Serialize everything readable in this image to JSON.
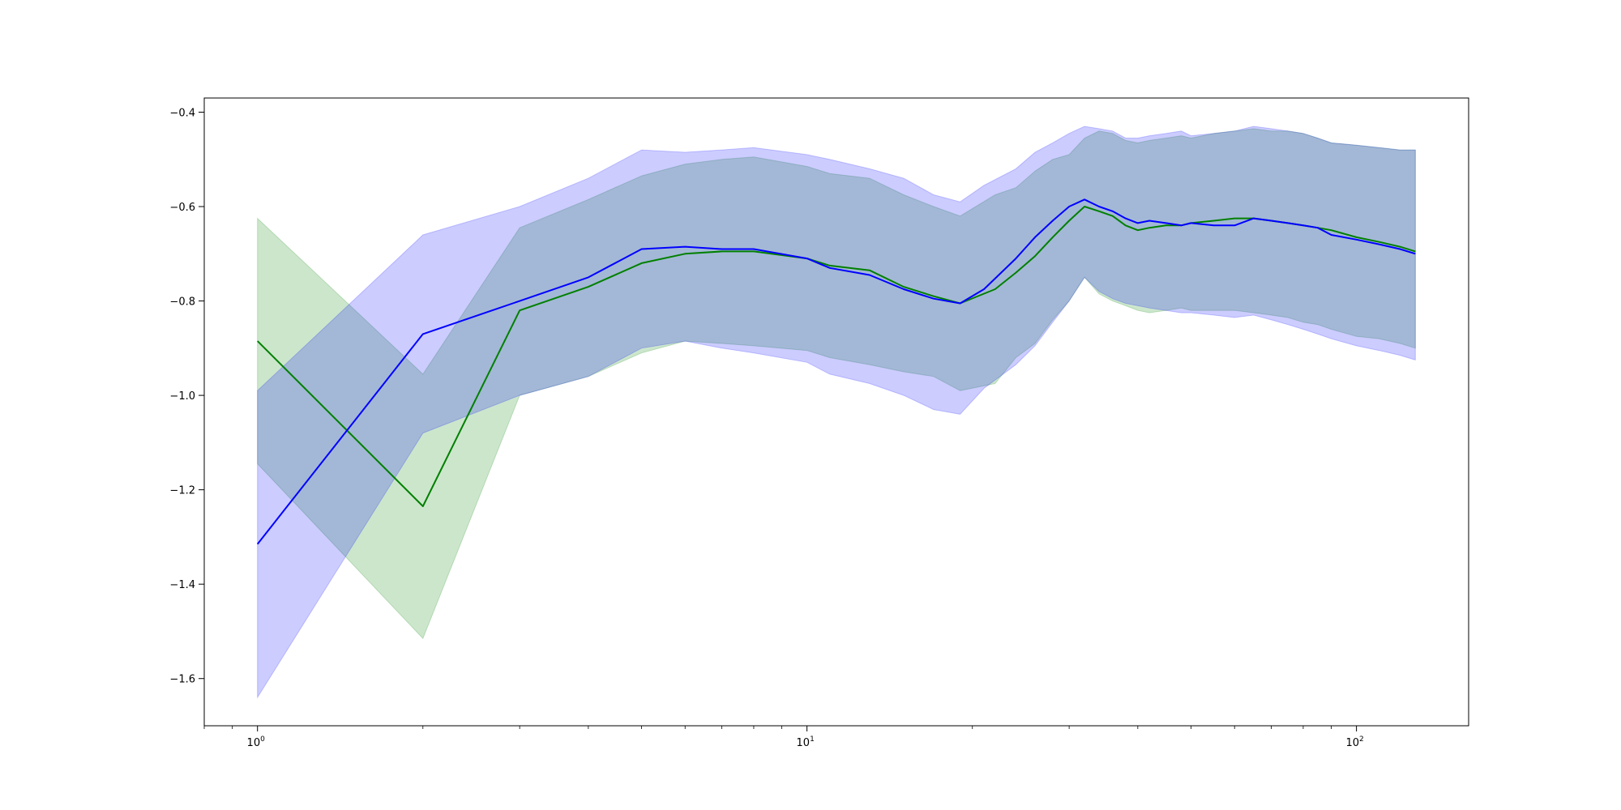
{
  "chart_data": {
    "type": "line",
    "title": "",
    "xlabel": "",
    "ylabel": "",
    "x_scale": "log",
    "xlim": [
      0.8,
      160
    ],
    "ylim": [
      -1.7,
      -0.37
    ],
    "x_ticks": [
      {
        "value": 1,
        "base": "10",
        "exp": "0"
      },
      {
        "value": 10,
        "base": "10",
        "exp": "1"
      },
      {
        "value": 100,
        "base": "10",
        "exp": "2"
      }
    ],
    "y_ticks": [
      {
        "value": -0.4,
        "label": "−0.4"
      },
      {
        "value": -0.6,
        "label": "−0.6"
      },
      {
        "value": -0.8,
        "label": "−0.8"
      },
      {
        "value": -1.0,
        "label": "−1.0"
      },
      {
        "value": -1.2,
        "label": "−1.2"
      },
      {
        "value": -1.4,
        "label": "−1.4"
      },
      {
        "value": -1.6,
        "label": "−1.6"
      }
    ],
    "grid": false,
    "legend": "none",
    "series": [
      {
        "color": "#008000",
        "band_color": "#008000",
        "band_opacity": 0.2,
        "x": [
          1,
          2,
          3,
          4,
          5,
          6,
          7,
          8,
          10,
          11,
          13,
          15,
          17,
          19,
          22,
          24,
          26,
          28,
          30,
          32,
          34,
          36,
          38,
          40,
          42,
          45,
          48,
          50,
          55,
          60,
          65,
          70,
          75,
          80,
          85,
          90,
          100,
          110,
          120,
          128
        ],
        "mean": [
          -0.885,
          -1.235,
          -0.82,
          -0.77,
          -0.72,
          -0.7,
          -0.695,
          -0.695,
          -0.71,
          -0.725,
          -0.735,
          -0.77,
          -0.79,
          -0.805,
          -0.775,
          -0.74,
          -0.705,
          -0.665,
          -0.63,
          -0.6,
          -0.61,
          -0.62,
          -0.64,
          -0.65,
          -0.645,
          -0.64,
          -0.64,
          -0.635,
          -0.63,
          -0.625,
          -0.625,
          -0.63,
          -0.635,
          -0.64,
          -0.645,
          -0.65,
          -0.665,
          -0.675,
          -0.685,
          -0.695
        ],
        "lower": [
          -1.145,
          -1.515,
          -1.0,
          -0.96,
          -0.91,
          -0.885,
          -0.89,
          -0.895,
          -0.905,
          -0.92,
          -0.935,
          -0.95,
          -0.96,
          -0.99,
          -0.975,
          -0.92,
          -0.89,
          -0.84,
          -0.8,
          -0.75,
          -0.785,
          -0.8,
          -0.81,
          -0.82,
          -0.825,
          -0.82,
          -0.815,
          -0.82,
          -0.82,
          -0.82,
          -0.825,
          -0.83,
          -0.835,
          -0.845,
          -0.85,
          -0.86,
          -0.875,
          -0.88,
          -0.89,
          -0.9
        ],
        "upper": [
          -0.625,
          -0.955,
          -0.645,
          -0.585,
          -0.535,
          -0.51,
          -0.5,
          -0.495,
          -0.515,
          -0.53,
          -0.54,
          -0.575,
          -0.6,
          -0.62,
          -0.575,
          -0.56,
          -0.525,
          -0.5,
          -0.49,
          -0.455,
          -0.44,
          -0.445,
          -0.46,
          -0.465,
          -0.46,
          -0.455,
          -0.45,
          -0.455,
          -0.445,
          -0.44,
          -0.435,
          -0.44,
          -0.44,
          -0.445,
          -0.455,
          -0.465,
          -0.47,
          -0.475,
          -0.48,
          -0.48
        ]
      },
      {
        "color": "#0000ff",
        "band_color": "#0000ff",
        "band_opacity": 0.2,
        "x": [
          1,
          2,
          3,
          4,
          5,
          6,
          7,
          8,
          10,
          11,
          13,
          15,
          17,
          19,
          21,
          24,
          26,
          28,
          30,
          32,
          34,
          36,
          38,
          40,
          42,
          45,
          48,
          50,
          55,
          60,
          65,
          70,
          75,
          80,
          85,
          90,
          100,
          110,
          120,
          128
        ],
        "mean": [
          -1.315,
          -0.87,
          -0.8,
          -0.75,
          -0.69,
          -0.685,
          -0.69,
          -0.69,
          -0.71,
          -0.73,
          -0.745,
          -0.775,
          -0.795,
          -0.805,
          -0.775,
          -0.71,
          -0.665,
          -0.63,
          -0.6,
          -0.585,
          -0.6,
          -0.61,
          -0.625,
          -0.635,
          -0.63,
          -0.635,
          -0.64,
          -0.635,
          -0.64,
          -0.64,
          -0.625,
          -0.63,
          -0.635,
          -0.64,
          -0.645,
          -0.66,
          -0.67,
          -0.68,
          -0.69,
          -0.7
        ],
        "lower": [
          -1.64,
          -1.08,
          -1.0,
          -0.96,
          -0.9,
          -0.885,
          -0.9,
          -0.91,
          -0.93,
          -0.955,
          -0.975,
          -1.0,
          -1.03,
          -1.04,
          -0.985,
          -0.935,
          -0.895,
          -0.845,
          -0.8,
          -0.75,
          -0.78,
          -0.795,
          -0.805,
          -0.81,
          -0.815,
          -0.82,
          -0.825,
          -0.825,
          -0.83,
          -0.835,
          -0.83,
          -0.84,
          -0.85,
          -0.86,
          -0.87,
          -0.88,
          -0.895,
          -0.905,
          -0.915,
          -0.925
        ],
        "upper": [
          -0.99,
          -0.66,
          -0.6,
          -0.54,
          -0.48,
          -0.485,
          -0.48,
          -0.475,
          -0.49,
          -0.5,
          -0.52,
          -0.54,
          -0.575,
          -0.59,
          -0.555,
          -0.52,
          -0.485,
          -0.465,
          -0.445,
          -0.43,
          -0.435,
          -0.44,
          -0.455,
          -0.455,
          -0.45,
          -0.445,
          -0.44,
          -0.45,
          -0.445,
          -0.44,
          -0.43,
          -0.435,
          -0.44,
          -0.445,
          -0.455,
          -0.465,
          -0.47,
          -0.475,
          -0.48,
          -0.48
        ]
      }
    ]
  }
}
